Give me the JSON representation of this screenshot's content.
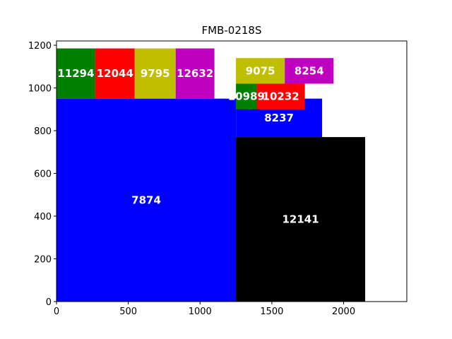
{
  "chart_data": {
    "type": "treemap-rectangles",
    "title": "FMB-0218S",
    "xlabel": "",
    "ylabel": "",
    "xlim": [
      0,
      2440
    ],
    "ylim": [
      0,
      1220
    ],
    "xticks": [
      0,
      500,
      1000,
      1500,
      2000
    ],
    "yticks": [
      0,
      200,
      400,
      600,
      800,
      1000,
      1200
    ],
    "grid": false,
    "rects": [
      {
        "label": "7874",
        "x": 0,
        "y": 0,
        "w": 1250,
        "h": 950,
        "color": "#0000ff"
      },
      {
        "label": "12141",
        "x": 1250,
        "y": 0,
        "w": 900,
        "h": 770,
        "color": "#000000"
      },
      {
        "label": "8237",
        "x": 1250,
        "y": 770,
        "w": 600,
        "h": 180,
        "color": "#0000ff"
      },
      {
        "label": "11294",
        "x": 0,
        "y": 950,
        "w": 270,
        "h": 235,
        "color": "#008000"
      },
      {
        "label": "12044",
        "x": 270,
        "y": 950,
        "w": 275,
        "h": 235,
        "color": "#ff0000"
      },
      {
        "label": "9795",
        "x": 545,
        "y": 950,
        "w": 285,
        "h": 235,
        "color": "#bfbf00"
      },
      {
        "label": "12632",
        "x": 830,
        "y": 950,
        "w": 270,
        "h": 235,
        "color": "#bf00bf"
      },
      {
        "label": "10989",
        "x": 1250,
        "y": 900,
        "w": 145,
        "h": 120,
        "color": "#008000"
      },
      {
        "label": "10232",
        "x": 1395,
        "y": 900,
        "w": 335,
        "h": 120,
        "color": "#ff0000"
      },
      {
        "label": "9075",
        "x": 1250,
        "y": 1020,
        "w": 340,
        "h": 120,
        "color": "#bfbf00"
      },
      {
        "label": "8254",
        "x": 1590,
        "y": 1020,
        "w": 340,
        "h": 120,
        "color": "#bf00bf"
      }
    ]
  }
}
